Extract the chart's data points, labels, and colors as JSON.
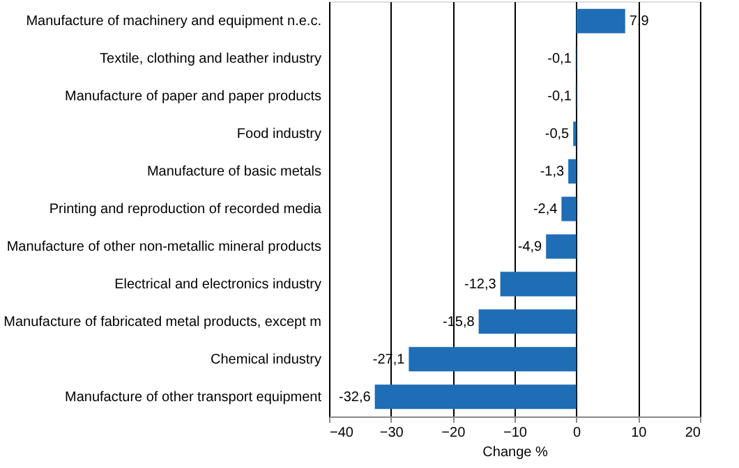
{
  "chart_data": {
    "type": "bar",
    "orientation": "horizontal",
    "xlabel": "Change %",
    "categories": [
      "Manufacture of machinery and equipment n.e.c.",
      "Textile, clothing and leather industry",
      "Manufacture of paper and paper products",
      "Food industry",
      "Manufacture of basic metals",
      "Printing and reproduction of recorded media",
      "Manufacture of other non-metallic mineral products",
      "Electrical and electronics industry",
      "Manufacture of fabricated metal products, except m",
      "Chemical industry",
      "Manufacture of other transport equipment"
    ],
    "values": [
      7.9,
      -0.1,
      -0.1,
      -0.5,
      -1.3,
      -2.4,
      -4.9,
      -12.3,
      -15.8,
      -27.1,
      -32.6
    ],
    "value_labels": [
      "7,9",
      "-0,1",
      "-0,1",
      "-0,5",
      "-1,3",
      "-2,4",
      "-4,9",
      "-12,3",
      "-15,8",
      "-27,1",
      "-32,6"
    ],
    "color": "#1f6db5",
    "xlim": [
      -40,
      20
    ],
    "xticks": [
      -40,
      -30,
      -20,
      -10,
      0,
      10,
      20
    ],
    "grid": "x"
  }
}
